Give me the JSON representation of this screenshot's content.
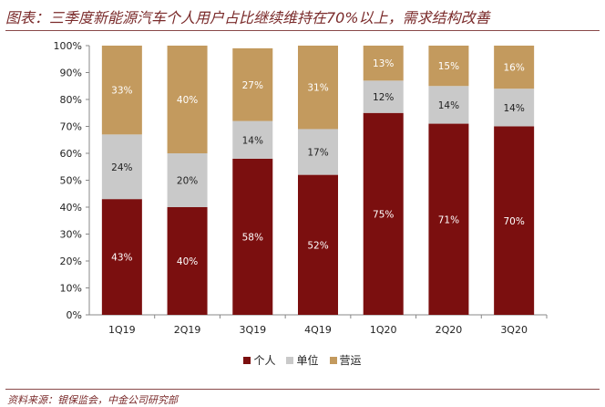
{
  "title": "图表：三季度新能源汽车个人用户占比继续维持在70%以上，需求结构改善",
  "source": "资料来源：银保监会，中金公司研究部",
  "chart_data": {
    "type": "bar",
    "stacked": true,
    "categories": [
      "1Q19",
      "2Q19",
      "3Q19",
      "4Q19",
      "1Q20",
      "2Q20",
      "3Q20"
    ],
    "series": [
      {
        "name": "个人",
        "color": "#7b0f0f",
        "label_color": "#ffffff",
        "values": [
          43,
          40,
          58,
          52,
          75,
          71,
          70
        ]
      },
      {
        "name": "单位",
        "color": "#c9c9c9",
        "label_color": "#222222",
        "values": [
          24,
          20,
          14,
          17,
          12,
          14,
          14
        ]
      },
      {
        "name": "营运",
        "color": "#c39a5e",
        "label_color": "#ffffff",
        "values": [
          33,
          40,
          27,
          31,
          13,
          15,
          16
        ]
      }
    ],
    "ylim": [
      0,
      100
    ],
    "yticks": [
      "0%",
      "10%",
      "20%",
      "30%",
      "40%",
      "50%",
      "60%",
      "70%",
      "80%",
      "90%",
      "100%"
    ],
    "ytick_values": [
      0,
      10,
      20,
      30,
      40,
      50,
      60,
      70,
      80,
      90,
      100
    ],
    "legend_position": "bottom",
    "grid": false
  }
}
